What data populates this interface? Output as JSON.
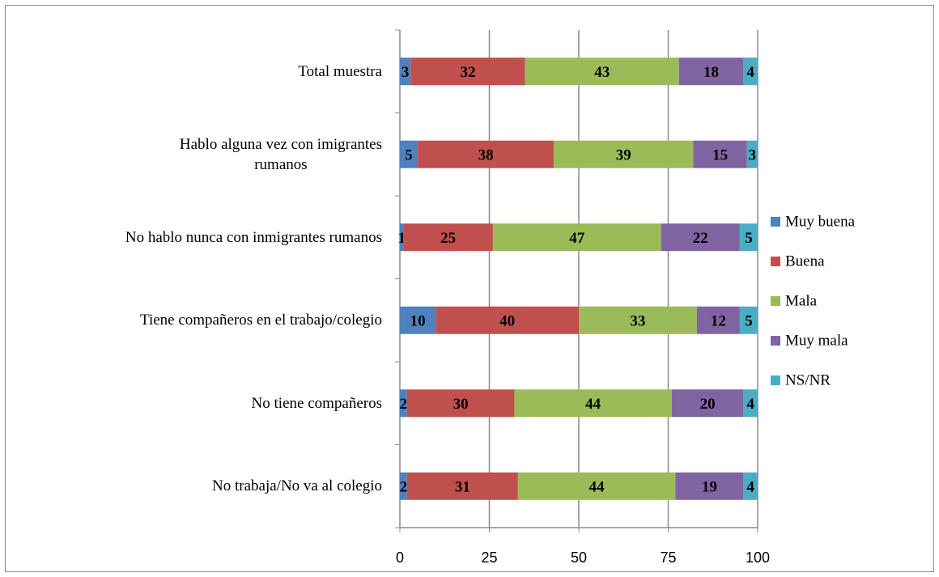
{
  "chart_data": {
    "type": "stacked_barh",
    "categories": [
      "Total muestra",
      "Hablo alguna vez con imigrantes\nrumanos",
      "No hablo nunca con inmigrantes rumanos",
      "Tiene compañeros en el trabajo/colegio",
      "No tiene compañeros",
      "No trabaja/No va al colegio"
    ],
    "series": [
      {
        "name": "Muy buena",
        "color": "#4f81bd",
        "values": [
          3,
          5,
          1,
          10,
          2,
          2
        ]
      },
      {
        "name": "Buena",
        "color": "#c0504d",
        "values": [
          32,
          38,
          25,
          40,
          30,
          31
        ]
      },
      {
        "name": "Mala",
        "color": "#9bbb59",
        "values": [
          43,
          39,
          47,
          33,
          44,
          44
        ]
      },
      {
        "name": "Muy mala",
        "color": "#8064a2",
        "values": [
          18,
          15,
          22,
          12,
          20,
          19
        ]
      },
      {
        "name": "NS/NR",
        "color": "#4bacc6",
        "values": [
          4,
          3,
          5,
          5,
          4,
          4
        ]
      }
    ],
    "xlim": [
      0,
      100
    ],
    "xticks": [
      0,
      25,
      50,
      75,
      100
    ],
    "grid": true,
    "legend": "right"
  }
}
